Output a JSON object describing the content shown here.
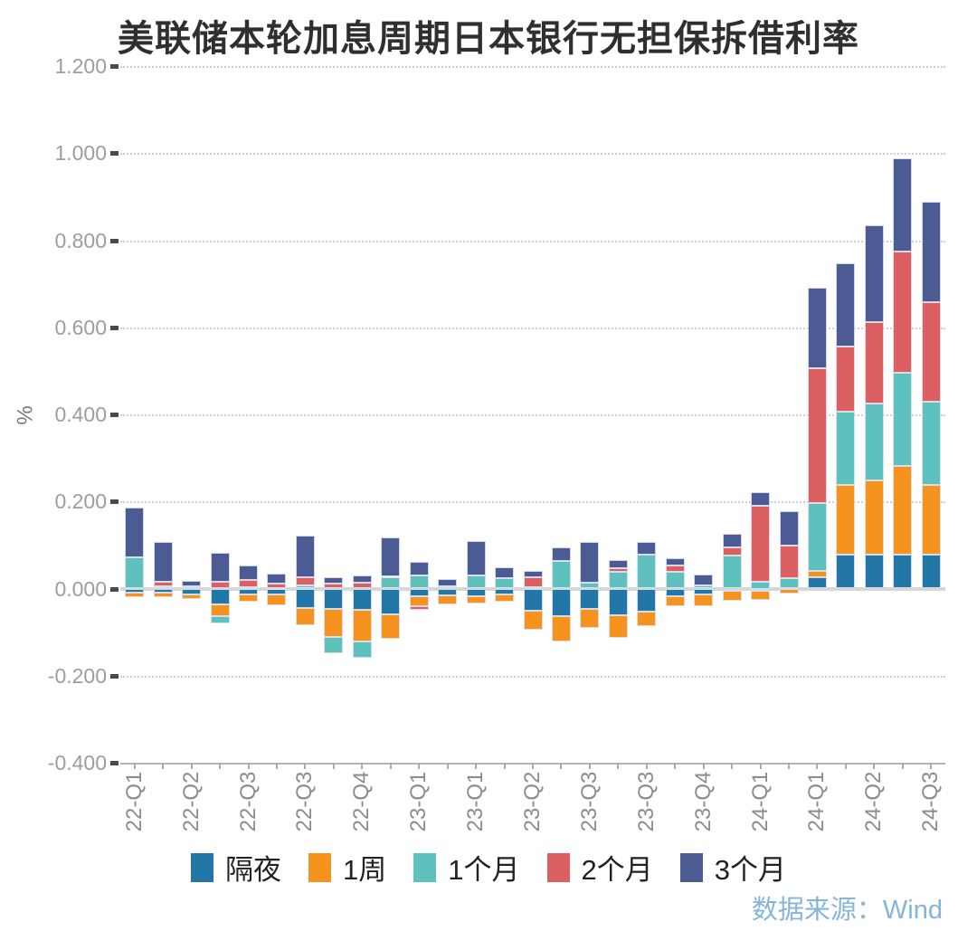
{
  "title": "美联储本轮加息周期日本银行无担保拆借利率",
  "source": "数据来源：Wind",
  "y_axis": {
    "unit": "%",
    "tick_labels": [
      "1.200",
      "1.000",
      "0.800",
      "0.600",
      "0.400",
      "0.200",
      "0.000",
      "-0.200",
      "-0.400"
    ],
    "max": 1.2,
    "min": -0.4,
    "step": 0.2
  },
  "legend": {
    "items": [
      {
        "label": "隔夜",
        "color": "#2277A6"
      },
      {
        "label": "1周",
        "color": "#F6921E"
      },
      {
        "label": "1个月",
        "color": "#5EC1BE"
      },
      {
        "label": "2个月",
        "color": "#DC6062"
      },
      {
        "label": "3个月",
        "color": "#4D5B94"
      }
    ]
  },
  "chart_data": {
    "type": "bar",
    "stacked": true,
    "title": "美联储本轮加息周期日本银行无担保拆借利率",
    "xlabel": "",
    "ylabel": "%",
    "ylim": [
      -0.4,
      1.2
    ],
    "grid": "dotted-horizontal",
    "legend_position": "bottom",
    "x_labels": [
      "22-Q1",
      "",
      "22-Q2",
      "",
      "22-Q3",
      "",
      "22-Q3",
      "",
      "22-Q4",
      "",
      "23-Q1",
      "",
      "23-Q1",
      "",
      "23-Q2",
      "",
      "23-Q3",
      "",
      "23-Q3",
      "",
      "23-Q4",
      "",
      "24-Q1",
      "",
      "24-Q1",
      "",
      "24-Q2",
      "",
      "24-Q3"
    ],
    "series": [
      {
        "name": "隔夜",
        "color": "#2277A6",
        "values": [
          -0.01,
          -0.01,
          -0.013,
          -0.036,
          -0.014,
          -0.014,
          -0.044,
          -0.046,
          -0.048,
          -0.06,
          -0.017,
          -0.015,
          -0.017,
          -0.014,
          -0.05,
          -0.064,
          -0.047,
          -0.062,
          -0.054,
          -0.017,
          -0.014,
          -0.006,
          -0.006,
          -0.002,
          0.027,
          0.077,
          0.077,
          0.077,
          0.077
        ]
      },
      {
        "name": "1周",
        "color": "#F6921E",
        "values": [
          -0.01,
          -0.009,
          -0.01,
          -0.028,
          -0.017,
          -0.024,
          -0.041,
          -0.066,
          -0.074,
          -0.056,
          -0.024,
          -0.021,
          -0.018,
          -0.017,
          -0.045,
          -0.057,
          -0.044,
          -0.051,
          -0.033,
          -0.024,
          -0.026,
          -0.022,
          -0.02,
          -0.01,
          0.013,
          0.16,
          0.172,
          0.204,
          0.16
        ]
      },
      {
        "name": "1个月",
        "color": "#5EC1BE",
        "values": [
          0.071,
          0.006,
          0.006,
          -0.017,
          0.004,
          0.002,
          0.007,
          -0.036,
          -0.038,
          0.027,
          0.031,
          0.006,
          0.031,
          0.023,
          0.004,
          0.064,
          0.014,
          0.038,
          0.077,
          0.039,
          0.008,
          0.076,
          0.015,
          0.023,
          0.156,
          0.17,
          0.175,
          0.214,
          0.193
        ]
      },
      {
        "name": "2个月",
        "color": "#DC6062",
        "values": [
          0.0,
          0.009,
          0.0,
          0.016,
          0.015,
          0.01,
          0.019,
          0.012,
          0.013,
          0.0,
          -0.007,
          0.0,
          0.0,
          0.0,
          0.023,
          0.0,
          0.0,
          0.009,
          0.0,
          0.013,
          0.0,
          0.018,
          0.176,
          0.076,
          0.31,
          0.148,
          0.187,
          0.278,
          0.227
        ]
      },
      {
        "name": "3个月",
        "color": "#4D5B94",
        "values": [
          0.115,
          0.093,
          0.012,
          0.066,
          0.035,
          0.023,
          0.096,
          0.013,
          0.018,
          0.091,
          0.031,
          0.016,
          0.078,
          0.025,
          0.013,
          0.031,
          0.094,
          0.019,
          0.029,
          0.017,
          0.025,
          0.031,
          0.031,
          0.078,
          0.185,
          0.193,
          0.224,
          0.216,
          0.231
        ]
      }
    ]
  }
}
